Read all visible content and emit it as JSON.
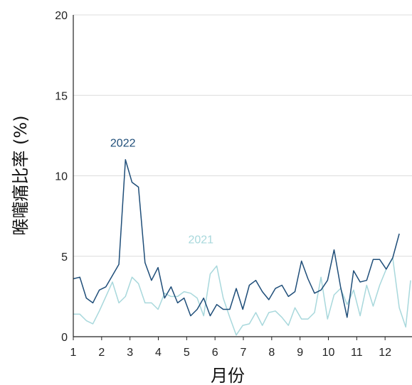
{
  "chart_data": {
    "type": "line",
    "title": "",
    "xlabel": "月份",
    "ylabel": "喉嚨痛比率 (%)",
    "xlim": [
      1,
      12.95
    ],
    "ylim": [
      0,
      20
    ],
    "xticks": [
      1,
      2,
      3,
      4,
      5,
      6,
      7,
      8,
      9,
      10,
      11,
      12
    ],
    "yticks": [
      0,
      5,
      10,
      15,
      20
    ],
    "grid": "horizontal",
    "legend": "none",
    "series": [
      {
        "name": "2022",
        "color": "#1f4e79",
        "label_at": [
          2.75,
          11.8
        ],
        "x": [
          1,
          1.23,
          1.46,
          1.69,
          1.92,
          2.15,
          2.38,
          2.61,
          2.84,
          3.07,
          3.3,
          3.53,
          3.76,
          3.99,
          4.22,
          4.45,
          4.68,
          4.91,
          5.14,
          5.37,
          5.6,
          5.83,
          6.06,
          6.29,
          6.52,
          6.75,
          6.98,
          7.21,
          7.44,
          7.67,
          7.9,
          8.13,
          8.36,
          8.59,
          8.82,
          9.05,
          9.28,
          9.51,
          9.74,
          9.97,
          10.2,
          10.43,
          10.66,
          10.89,
          11.12,
          11.35,
          11.58,
          11.81,
          12.04,
          12.27,
          12.5
        ],
        "values": [
          3.6,
          3.7,
          2.4,
          2.1,
          2.9,
          3.1,
          3.8,
          4.5,
          11.0,
          9.6,
          9.3,
          4.6,
          3.5,
          4.3,
          2.4,
          3.1,
          2.1,
          2.4,
          1.3,
          1.7,
          2.4,
          1.3,
          2.0,
          1.7,
          1.7,
          3.0,
          1.7,
          3.2,
          3.5,
          2.8,
          2.3,
          3.0,
          3.2,
          2.5,
          2.8,
          4.7,
          3.6,
          2.7,
          2.9,
          3.5,
          5.4,
          3.1,
          1.2,
          4.1,
          3.4,
          3.5,
          4.8,
          4.8,
          4.2,
          4.9,
          6.4
        ]
      },
      {
        "name": "2021",
        "color": "#a8d8dc",
        "label_at": [
          5.5,
          5.8
        ],
        "x": [
          1,
          1.23,
          1.46,
          1.69,
          1.92,
          2.15,
          2.38,
          2.61,
          2.84,
          3.07,
          3.3,
          3.53,
          3.76,
          3.99,
          4.22,
          4.45,
          4.68,
          4.91,
          5.14,
          5.37,
          5.6,
          5.83,
          6.06,
          6.29,
          6.52,
          6.75,
          6.98,
          7.21,
          7.44,
          7.67,
          7.9,
          8.13,
          8.36,
          8.59,
          8.82,
          9.05,
          9.28,
          9.51,
          9.74,
          9.97,
          10.2,
          10.43,
          10.66,
          10.89,
          11.12,
          11.35,
          11.58,
          11.81,
          12.04,
          12.27,
          12.5,
          12.73,
          12.9
        ],
        "values": [
          1.4,
          1.4,
          1.0,
          0.8,
          1.6,
          2.5,
          3.4,
          2.1,
          2.5,
          3.7,
          3.3,
          2.1,
          2.1,
          1.7,
          2.7,
          2.5,
          2.5,
          2.8,
          2.7,
          2.4,
          1.3,
          3.9,
          4.4,
          2.4,
          1.2,
          0.1,
          0.7,
          0.8,
          1.5,
          0.7,
          1.5,
          1.6,
          1.2,
          0.7,
          1.8,
          1.1,
          1.1,
          1.5,
          3.7,
          1.1,
          2.6,
          3.0,
          2.0,
          2.9,
          1.3,
          3.2,
          1.9,
          3.2,
          4.2,
          4.9,
          1.8,
          0.6,
          3.5
        ]
      }
    ]
  }
}
